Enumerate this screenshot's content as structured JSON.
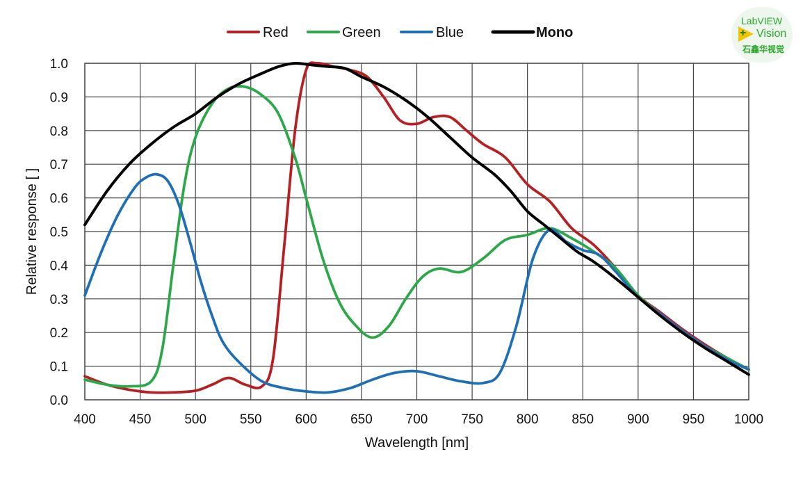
{
  "chart_data": {
    "type": "line",
    "title": "",
    "xlabel": "Wavelength [nm]",
    "ylabel": "Relative response [ ]",
    "xlim": [
      400,
      1000
    ],
    "ylim": [
      0,
      1.0
    ],
    "xticks": [
      400,
      450,
      500,
      550,
      600,
      650,
      700,
      750,
      800,
      850,
      900,
      950,
      1000
    ],
    "yticks": [
      0.0,
      0.1,
      0.2,
      0.3,
      0.4,
      0.5,
      0.6,
      0.7,
      0.8,
      0.9,
      1.0
    ],
    "ytick_labels": [
      "0.0",
      "0.1",
      "0.2",
      "0.3",
      "0.4",
      "0.5",
      "0.6",
      "0.7",
      "0.8",
      "0.9",
      "1.0"
    ],
    "grid": true,
    "legend_position": "top-center",
    "series": [
      {
        "name": "Red",
        "color": "#b52025",
        "x": [
          400,
          420,
          440,
          460,
          480,
          500,
          515,
          530,
          545,
          560,
          570,
          580,
          590,
          600,
          610,
          625,
          640,
          655,
          670,
          685,
          700,
          715,
          730,
          745,
          760,
          780,
          800,
          820,
          840,
          860,
          880,
          900,
          920,
          940,
          960,
          980,
          1000
        ],
        "y": [
          0.07,
          0.045,
          0.03,
          0.022,
          0.022,
          0.027,
          0.045,
          0.065,
          0.045,
          0.04,
          0.12,
          0.45,
          0.8,
          0.98,
          1.0,
          0.99,
          0.98,
          0.96,
          0.9,
          0.83,
          0.82,
          0.84,
          0.84,
          0.8,
          0.76,
          0.72,
          0.64,
          0.59,
          0.51,
          0.46,
          0.39,
          0.31,
          0.26,
          0.21,
          0.165,
          0.125,
          0.09
        ]
      },
      {
        "name": "Green",
        "color": "#2ca84a",
        "x": [
          400,
          420,
          440,
          460,
          470,
          480,
          490,
          500,
          515,
          530,
          545,
          560,
          575,
          590,
          600,
          615,
          630,
          645,
          660,
          675,
          690,
          705,
          720,
          740,
          760,
          780,
          800,
          820,
          840,
          860,
          880,
          900,
          920,
          940,
          960,
          980,
          1000
        ],
        "y": [
          0.06,
          0.045,
          0.04,
          0.055,
          0.15,
          0.4,
          0.64,
          0.78,
          0.88,
          0.925,
          0.93,
          0.905,
          0.85,
          0.72,
          0.6,
          0.42,
          0.29,
          0.22,
          0.185,
          0.22,
          0.3,
          0.365,
          0.39,
          0.38,
          0.42,
          0.475,
          0.49,
          0.51,
          0.48,
          0.44,
          0.39,
          0.31,
          0.255,
          0.205,
          0.16,
          0.125,
          0.09
        ]
      },
      {
        "name": "Blue",
        "color": "#1f6fb5",
        "x": [
          400,
          415,
          430,
          445,
          455,
          465,
          475,
          485,
          495,
          505,
          515,
          525,
          540,
          560,
          580,
          600,
          620,
          640,
          660,
          680,
          700,
          720,
          740,
          760,
          775,
          790,
          805,
          820,
          835,
          850,
          865,
          880,
          900,
          920,
          940,
          960,
          980,
          1000
        ],
        "y": [
          0.31,
          0.44,
          0.55,
          0.63,
          0.66,
          0.67,
          0.65,
          0.58,
          0.47,
          0.35,
          0.25,
          0.17,
          0.11,
          0.055,
          0.035,
          0.025,
          0.022,
          0.035,
          0.06,
          0.08,
          0.085,
          0.07,
          0.055,
          0.05,
          0.08,
          0.22,
          0.42,
          0.505,
          0.47,
          0.445,
          0.43,
          0.38,
          0.305,
          0.255,
          0.205,
          0.16,
          0.12,
          0.09
        ]
      },
      {
        "name": "Mono",
        "color": "#000000",
        "x": [
          400,
          420,
          440,
          460,
          480,
          500,
          520,
          540,
          560,
          575,
          590,
          605,
          620,
          635,
          650,
          670,
          690,
          710,
          730,
          750,
          770,
          785,
          800,
          815,
          830,
          845,
          860,
          880,
          900,
          920,
          940,
          960,
          980,
          1000
        ],
        "y": [
          0.52,
          0.62,
          0.7,
          0.76,
          0.81,
          0.85,
          0.9,
          0.94,
          0.97,
          0.99,
          1.0,
          0.995,
          0.99,
          0.985,
          0.96,
          0.93,
          0.89,
          0.84,
          0.78,
          0.72,
          0.67,
          0.62,
          0.56,
          0.52,
          0.48,
          0.44,
          0.41,
          0.36,
          0.305,
          0.25,
          0.2,
          0.155,
          0.115,
          0.075
        ]
      }
    ]
  },
  "logo": {
    "line1": "LabVIEW",
    "line2": "Vision",
    "line3": "石鑫华视觉",
    "plus": "+"
  }
}
